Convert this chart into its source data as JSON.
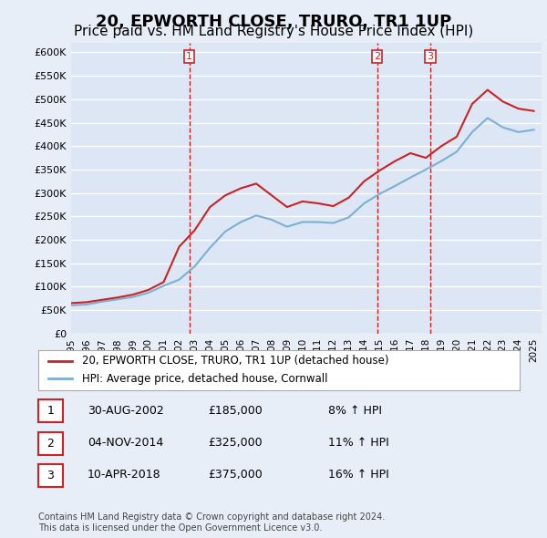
{
  "title": "20, EPWORTH CLOSE, TRURO, TR1 1UP",
  "subtitle": "Price paid vs. HM Land Registry's House Price Index (HPI)",
  "title_fontsize": 13,
  "subtitle_fontsize": 11,
  "ylabel_ticks": [
    0,
    50000,
    100000,
    150000,
    200000,
    250000,
    300000,
    350000,
    400000,
    450000,
    500000,
    550000,
    600000
  ],
  "ylim": [
    0,
    620000
  ],
  "xlim_start": 1995.0,
  "xlim_end": 2025.5,
  "background_color": "#e8eef8",
  "plot_bg_color": "#dce6f5",
  "grid_color": "#ffffff",
  "legend_label_red": "20, EPWORTH CLOSE, TRURO, TR1 1UP (detached house)",
  "legend_label_blue": "HPI: Average price, detached house, Cornwall",
  "footer": "Contains HM Land Registry data © Crown copyright and database right 2024.\nThis data is licensed under the Open Government Licence v3.0.",
  "sales": [
    {
      "num": 1,
      "date": "30-AUG-2002",
      "price": "£185,000",
      "hpi": "8% ↑ HPI",
      "year": 2002.67
    },
    {
      "num": 2,
      "date": "04-NOV-2014",
      "price": "£325,000",
      "hpi": "11% ↑ HPI",
      "year": 2014.84
    },
    {
      "num": 3,
      "date": "10-APR-2018",
      "price": "£375,000",
      "hpi": "16% ↑ HPI",
      "year": 2018.28
    }
  ],
  "hpi_years": [
    1995,
    1996,
    1997,
    1998,
    1999,
    2000,
    2001,
    2002,
    2003,
    2004,
    2005,
    2006,
    2007,
    2008,
    2009,
    2010,
    2011,
    2012,
    2013,
    2014,
    2015,
    2016,
    2017,
    2018,
    2019,
    2020,
    2021,
    2022,
    2023,
    2024,
    2025
  ],
  "hpi_values": [
    60000,
    62000,
    68000,
    73000,
    78000,
    87000,
    102000,
    115000,
    143000,
    183000,
    218000,
    238000,
    252000,
    243000,
    228000,
    238000,
    238000,
    236000,
    248000,
    278000,
    298000,
    315000,
    333000,
    350000,
    368000,
    388000,
    430000,
    460000,
    440000,
    430000,
    435000
  ],
  "price_years": [
    1995,
    1996,
    1997,
    1998,
    1999,
    2000,
    2001,
    2002,
    2003,
    2004,
    2005,
    2006,
    2007,
    2008,
    2009,
    2010,
    2011,
    2012,
    2013,
    2014,
    2015,
    2016,
    2017,
    2018,
    2019,
    2020,
    2021,
    2022,
    2023,
    2024,
    2025
  ],
  "price_values": [
    65000,
    67000,
    72000,
    77000,
    83000,
    93000,
    110000,
    185000,
    220000,
    270000,
    295000,
    310000,
    320000,
    295000,
    270000,
    282000,
    278000,
    272000,
    290000,
    325000,
    348000,
    368000,
    385000,
    375000,
    400000,
    420000,
    490000,
    520000,
    495000,
    480000,
    475000
  ]
}
